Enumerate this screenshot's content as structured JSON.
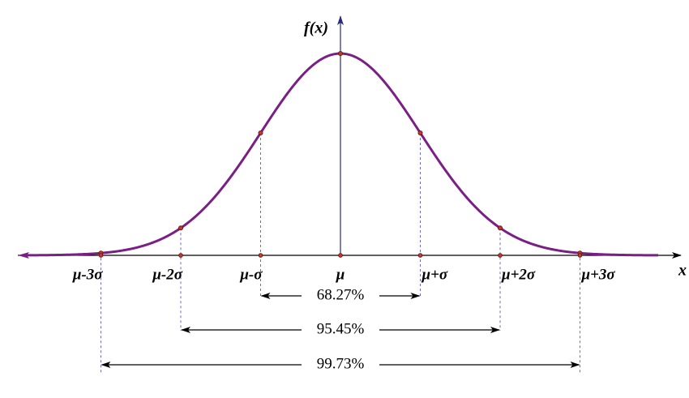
{
  "axes": {
    "y_label": "f(x)",
    "x_label": "x"
  },
  "ticks": [
    "μ-3σ",
    "μ-2σ",
    "μ-σ",
    "μ",
    "μ+σ",
    "μ+2σ",
    "μ+3σ"
  ],
  "intervals": [
    "68.27%",
    "95.45%",
    "99.73%"
  ]
}
